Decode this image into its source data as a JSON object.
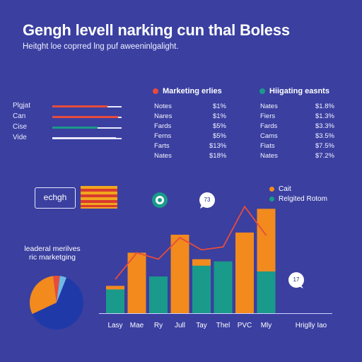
{
  "header": {
    "title": "Gengh levell narking cun thal Boless",
    "subtitle": "Heitght loe coprred lng puf aweeninlgalight."
  },
  "legend_top": {
    "left": {
      "label": "Marketing erlies",
      "color": "#e74c3c"
    },
    "right": {
      "label": "Hiigating easnts",
      "color": "#1a9a8a"
    }
  },
  "table_left": [
    {
      "name": "Notes",
      "value": "$1%"
    },
    {
      "name": "Nares",
      "value": "$1%"
    },
    {
      "name": "Fards",
      "value": "$5%"
    },
    {
      "name": "Ferns",
      "value": "$5%"
    },
    {
      "name": "Farts",
      "value": "$13%"
    },
    {
      "name": "Nates",
      "value": "$18%"
    }
  ],
  "table_right": [
    {
      "name": "Nates",
      "value": "$1.8%"
    },
    {
      "name": "Fiers",
      "value": "$1.3%"
    },
    {
      "name": "Fards",
      "value": "$3.3%"
    },
    {
      "name": "Cams",
      "value": "$3.5%"
    },
    {
      "name": "Fiats",
      "value": "$7.5%"
    },
    {
      "name": "Nates",
      "value": "$7.2%"
    }
  ],
  "progress": [
    {
      "label": "Plgjat",
      "color": "#e74c3c",
      "level": 0.8
    },
    {
      "label": "Can",
      "color": "#e74c3c",
      "level": 0.95
    },
    {
      "label": "Cise",
      "color": "#1a9a8a",
      "level": 0.65
    },
    {
      "label": "Vide",
      "color": "#e8e8ff",
      "level": 0.92
    }
  ],
  "badge": {
    "text": "echgh"
  },
  "bubbles": {
    "a": "73",
    "b": "17"
  },
  "pie_title": "leaderal merilves ric marketging",
  "legend_bottom": [
    {
      "label": "Cait",
      "color": "#f28a1e"
    },
    {
      "label": "Relgited Rotom",
      "color": "#1a9a8a"
    }
  ],
  "x_extra_label": "Hriglly Iao",
  "chart_data": {
    "type": "bar",
    "categories": [
      "Lasy",
      "Mae",
      "Ry",
      "Jull",
      "Tay",
      "Thel",
      "PVC",
      "Mly"
    ],
    "series": [
      {
        "name": "Cait",
        "color": "#f28a1e",
        "values": [
          38,
          84,
          38,
          109,
          75,
          65,
          112,
          145
        ]
      },
      {
        "name": "Relgited Rotom",
        "color": "#1a9a8a",
        "values": [
          33,
          0,
          51,
          0,
          66,
          72,
          0,
          58
        ]
      }
    ],
    "line": {
      "color": "#e74c3c",
      "values": [
        47,
        84,
        75,
        105,
        88,
        92,
        148,
        108
      ]
    },
    "ylim": [
      0,
      160
    ]
  },
  "pie_data": {
    "type": "pie",
    "slices": [
      {
        "value": 62,
        "color": "#1f3aa8"
      },
      {
        "value": 30,
        "color": "#f28a1e"
      },
      {
        "value": 4,
        "color": "#e74c3c"
      },
      {
        "value": 4,
        "color": "#6fb8e6"
      }
    ]
  }
}
